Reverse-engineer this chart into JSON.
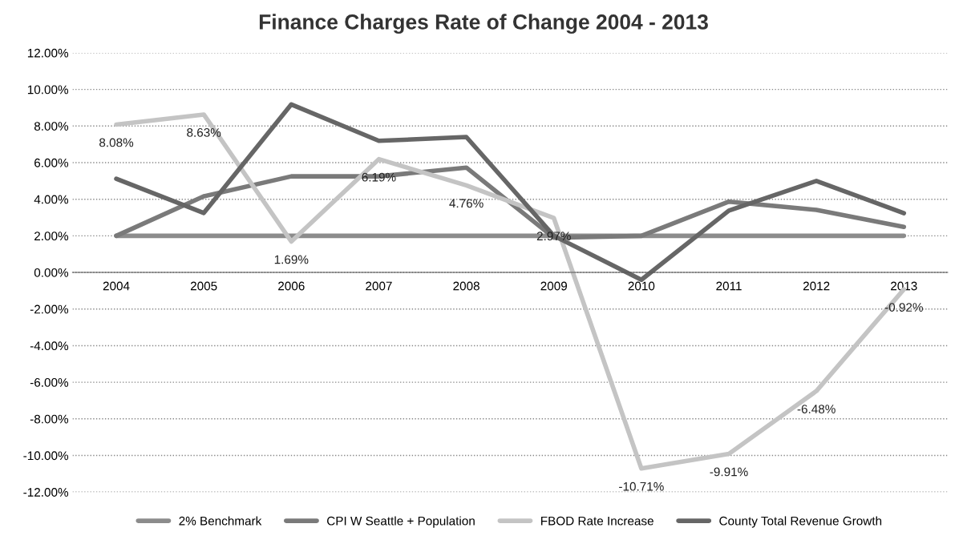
{
  "chart_data": {
    "type": "line",
    "title": "Finance Charges Rate of Change 2004 - 2013",
    "categories": [
      "2004",
      "2005",
      "2006",
      "2007",
      "2008",
      "2009",
      "2010",
      "2011",
      "2012",
      "2013"
    ],
    "series": [
      {
        "name": "2% Benchmark",
        "color": "#8c8c8c",
        "values": [
          2,
          2,
          2,
          2,
          2,
          2,
          2,
          2,
          2,
          2
        ]
      },
      {
        "name": "CPI W Seattle + Population",
        "color": "#7a7a7a",
        "values": [
          2.0,
          4.16,
          5.25,
          5.25,
          5.73,
          1.9,
          2.0,
          3.87,
          3.42,
          2.49
        ]
      },
      {
        "name": "FBOD Rate Increase",
        "color": "#c4c4c4",
        "values": [
          8.08,
          8.63,
          1.69,
          6.19,
          4.76,
          2.97,
          -10.71,
          -9.91,
          -6.48,
          -0.92
        ],
        "value_labels": [
          "8.08%",
          "8.63%",
          "1.69%",
          "6.19%",
          "4.76%",
          "2.97%",
          "-10.71%",
          "-9.91%",
          "-6.48%",
          "-0.92%"
        ]
      },
      {
        "name": "County Total Revenue Growth",
        "color": "#666666",
        "values": [
          5.12,
          3.25,
          9.18,
          7.19,
          7.4,
          2.0,
          -0.4,
          3.38,
          5.0,
          3.24
        ]
      }
    ],
    "ylim": [
      -12,
      12
    ],
    "yticks": [
      {
        "value": -12,
        "label": "-12.00%"
      },
      {
        "value": -10,
        "label": "-10.00%"
      },
      {
        "value": -8,
        "label": "-8.00%"
      },
      {
        "value": -6,
        "label": "-6.00%"
      },
      {
        "value": -4,
        "label": "-4.00%"
      },
      {
        "value": -2,
        "label": "-2.00%"
      },
      {
        "value": 0,
        "label": "0.00%"
      },
      {
        "value": 2,
        "label": "2.00%"
      },
      {
        "value": 4,
        "label": "4.00%"
      },
      {
        "value": 6,
        "label": "6.00%"
      },
      {
        "value": 8,
        "label": "8.00%"
      },
      {
        "value": 10,
        "label": "10.00%"
      },
      {
        "value": 12,
        "label": "12.00%"
      }
    ],
    "grid": "y",
    "legend": "bottom",
    "marker": "none",
    "line_style": "solid"
  }
}
